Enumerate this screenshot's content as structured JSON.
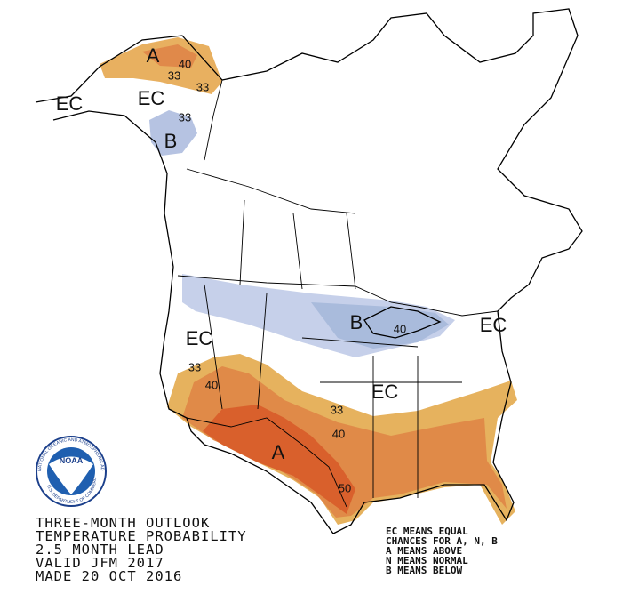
{
  "logo": {
    "text": "NOAA",
    "ring_top": "NATIONAL OCEANIC AND ATMOSPHERIC ADMINISTRATION",
    "ring_bottom": "U.S. DEPARTMENT OF COMMERCE"
  },
  "title_lines": [
    "THREE-MONTH OUTLOOK",
    "TEMPERATURE PROBABILITY",
    "2.5 MONTH LEAD",
    "VALID JFM 2017",
    "MADE 20 OCT 2016"
  ],
  "legend_lines": [
    "EC MEANS EQUAL",
    "CHANCES FOR A, N, B",
    "A MEANS ABOVE",
    "N MEANS NORMAL",
    "B MEANS BELOW"
  ],
  "map_labels": [
    "A",
    "40",
    "33",
    "33",
    "EC",
    "EC",
    "33",
    "B",
    "B",
    "40",
    "EC",
    "EC",
    "33",
    "40",
    "EC",
    "33",
    "40",
    "A",
    "50"
  ]
}
